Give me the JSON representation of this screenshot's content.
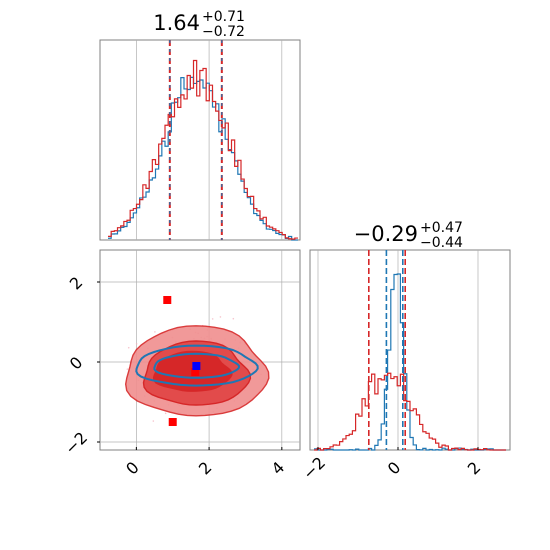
{
  "chart_data": {
    "type": "corner",
    "grid": true,
    "colors": {
      "red": "#d62728",
      "blue": "#1f77b4",
      "red_fill_light": "#f08f8f",
      "red_fill_dark": "#d62728",
      "marker_blue": "#0000ff",
      "marker_red": "#ff0000",
      "grid": "#b0b0b0"
    },
    "param1": {
      "title_median": "1.64",
      "title_plus": "+0.71",
      "title_minus": "−0.72",
      "quantiles": [
        0.92,
        1.64,
        2.35
      ],
      "xlim": [
        -1.0,
        4.5
      ],
      "xticks": [
        0,
        2,
        4
      ],
      "xtick_labels": [
        "0",
        "2",
        "4"
      ]
    },
    "param2": {
      "title_median": "−0.29",
      "title_plus": "+0.47",
      "title_minus": "−0.44",
      "quantiles_red": [
        -0.73,
        0.18
      ],
      "quantiles_blue": [
        -0.29,
        0.12
      ],
      "xlim": [
        -2.2,
        2.8
      ],
      "xticks": [
        -2,
        0,
        2
      ],
      "xtick_labels": [
        "−2",
        "0",
        "2"
      ]
    },
    "joint": {
      "ylim": [
        -2.2,
        2.8
      ],
      "yticks": [
        -2,
        0,
        2
      ],
      "ytick_labels": [
        "−2",
        "0",
        "2"
      ],
      "markers": [
        {
          "x": 0.85,
          "y": 1.55,
          "color": "red"
        },
        {
          "x": 1.0,
          "y": -1.5,
          "color": "red"
        },
        {
          "x": 1.62,
          "y": -0.25,
          "color": "red"
        },
        {
          "x": 1.65,
          "y": -0.1,
          "color": "blue"
        }
      ]
    }
  }
}
